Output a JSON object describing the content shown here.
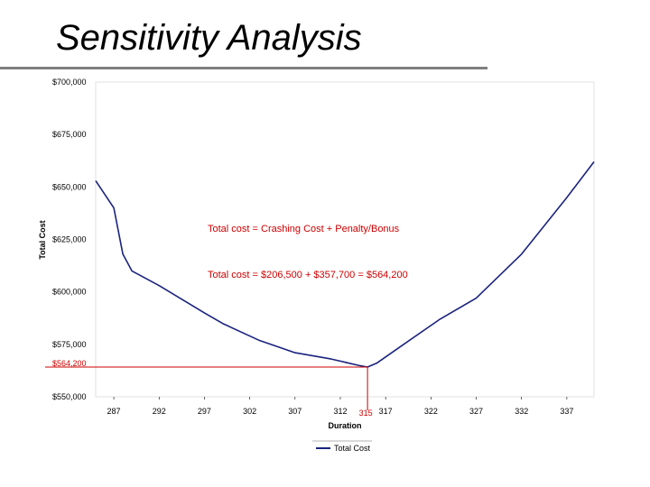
{
  "slide": {
    "title": "Sensitivity Analysis"
  },
  "chart_data": {
    "type": "line",
    "title": "",
    "xlabel": "Duration",
    "ylabel": "Total Cost",
    "xlim": [
      285,
      340
    ],
    "ylim": [
      550000,
      700000
    ],
    "x_ticks": [
      287,
      292,
      297,
      302,
      307,
      312,
      317,
      322,
      327,
      332,
      337
    ],
    "x_tick_labels": [
      "287",
      "292",
      "297",
      "302",
      "307",
      "312",
      "317",
      "322",
      "327",
      "332",
      "337"
    ],
    "y_ticks": [
      550000,
      575000,
      600000,
      625000,
      650000,
      675000,
      700000
    ],
    "y_tick_labels": [
      "$550,000",
      "$575,000",
      "$600,000",
      "$625,000",
      "$650,000",
      "$675,000",
      "$700,000"
    ],
    "grid": false,
    "legend": "bottom-center",
    "series": [
      {
        "name": "Total Cost",
        "color": "#1a237e",
        "x": [
          285,
          287,
          288,
          289,
          292,
          297,
          299,
          303,
          307,
          311,
          314,
          315,
          316,
          319,
          323,
          327,
          332,
          337,
          340
        ],
        "y": [
          653000,
          640000,
          618000,
          610000,
          603000,
          590000,
          585000,
          577000,
          571000,
          568000,
          565000,
          564200,
          566000,
          575000,
          587000,
          597000,
          618000,
          645000,
          662000
        ]
      }
    ],
    "reference": {
      "x": 315,
      "y": 564200,
      "x_label": "315",
      "y_label": "$564,200",
      "color": "#cc0000"
    },
    "annotations": [
      "Total cost = Crashing Cost + Penalty/Bonus",
      "Total cost = $206,500 + $357,700 = $564,200"
    ]
  }
}
